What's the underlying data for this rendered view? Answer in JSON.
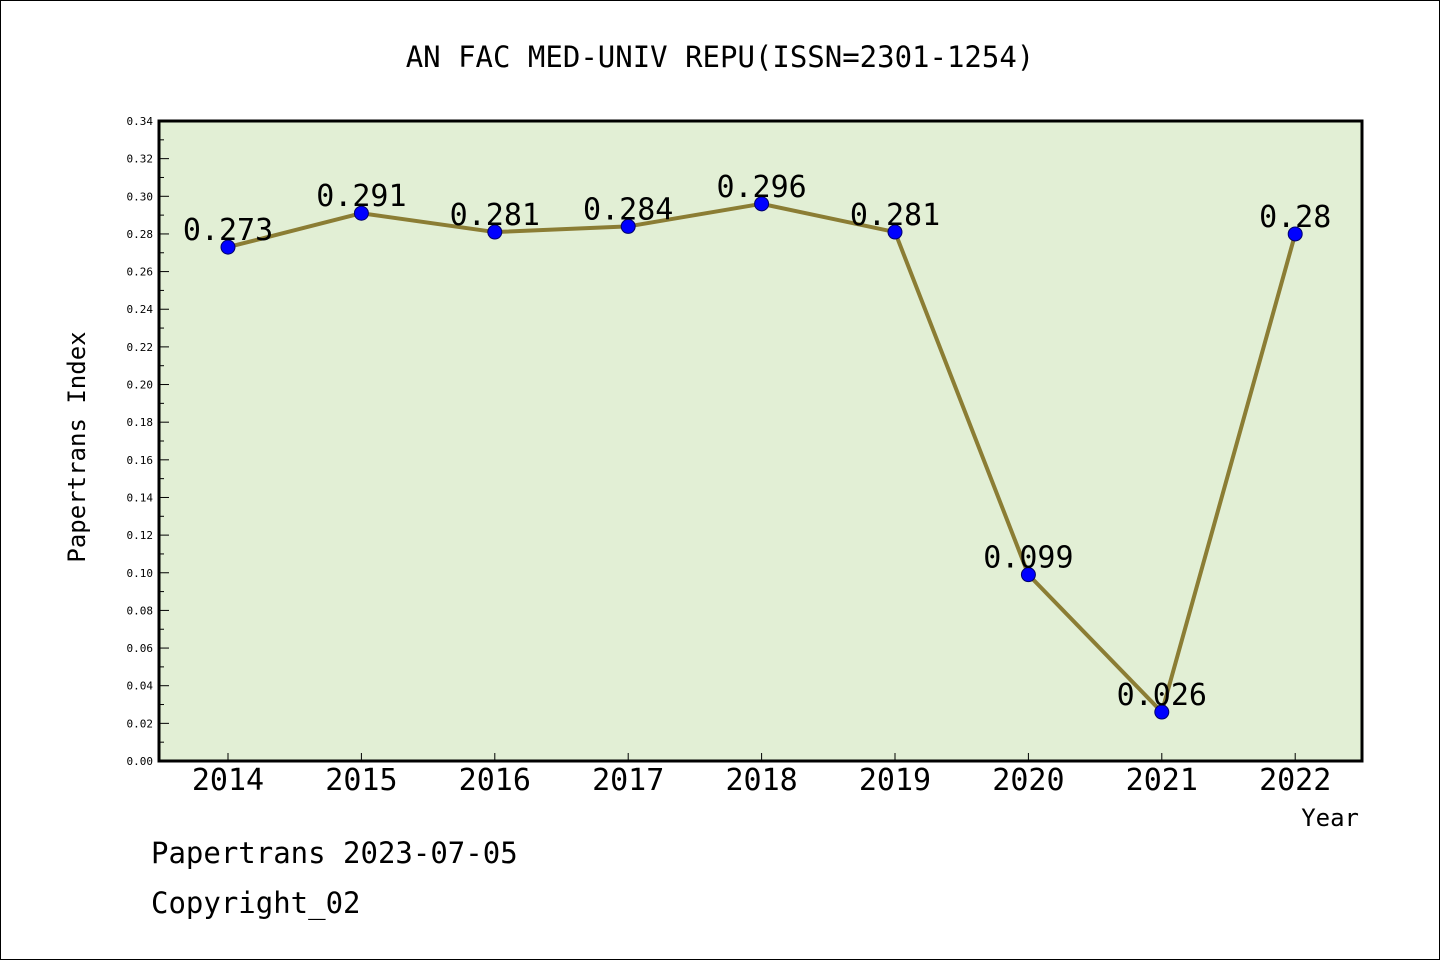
{
  "chart_data": {
    "type": "line",
    "title": "AN FAC MED-UNIV REPU(ISSN=2301-1254)",
    "xlabel": "Year",
    "ylabel": "Papertrans Index",
    "categories": [
      "2014",
      "2015",
      "2016",
      "2017",
      "2018",
      "2019",
      "2020",
      "2021",
      "2022"
    ],
    "values": [
      0.273,
      0.291,
      0.281,
      0.284,
      0.296,
      0.281,
      0.099,
      0.026,
      0.28
    ],
    "data_labels": [
      "0.273",
      "0.291",
      "0.281",
      "0.284",
      "0.296",
      "0.281",
      "0.099",
      "0.026",
      "0.28"
    ],
    "ylim": [
      0,
      0.34
    ],
    "yticks": [
      "0.00",
      "0.02",
      "0.04",
      "0.06",
      "0.08",
      "0.10",
      "0.12",
      "0.14",
      "0.16",
      "0.18",
      "0.20",
      "0.22",
      "0.24",
      "0.26",
      "0.28",
      "0.30",
      "0.32",
      "0.34"
    ],
    "grid": false,
    "colors": {
      "plot_background": "#e2efd5",
      "line": "#8b7d34",
      "marker": "#0000ff"
    }
  },
  "footer": {
    "credit": "Papertrans 2023-07-05",
    "copyright": "Copyright_02"
  }
}
